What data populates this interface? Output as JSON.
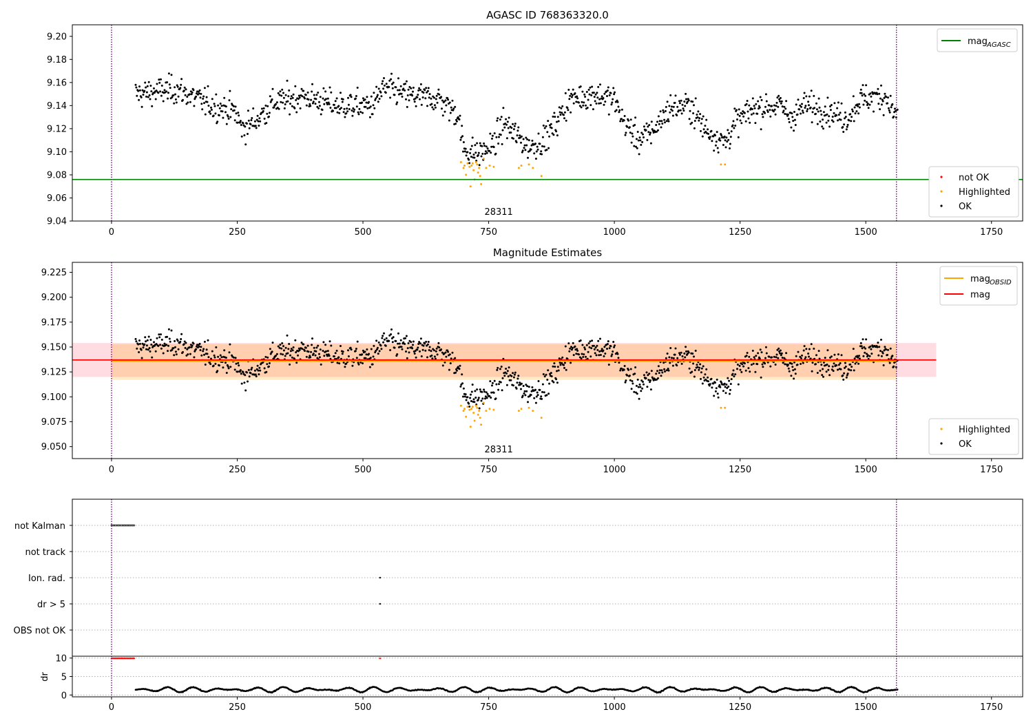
{
  "chart_data": [
    {
      "type": "scatter",
      "title": "AGASC ID 768363320.0",
      "xlim": [
        -78,
        1812
      ],
      "ylim": [
        9.04,
        9.21
      ],
      "xticks": [
        0,
        250,
        500,
        750,
        1000,
        1250,
        1500,
        1750
      ],
      "yticks": [
        9.04,
        9.06,
        9.08,
        9.1,
        9.12,
        9.14,
        9.16,
        9.18,
        9.2
      ],
      "vlines": [
        0,
        1561
      ],
      "annotation": {
        "text": "28311",
        "x": 780
      },
      "legend_lines": [
        {
          "name": "mag",
          "sub": "AGASC",
          "color": "#008000"
        }
      ],
      "legend_points": [
        {
          "name": "not OK",
          "color": "#ff0000"
        },
        {
          "name": "Highlighted",
          "color": "#ffa500"
        },
        {
          "name": "OK",
          "color": "#000000"
        }
      ],
      "hline": {
        "y": 9.076,
        "color": "#008000"
      },
      "series": [
        {
          "name": "OK",
          "color": "#000000"
        },
        {
          "name": "Highlighted",
          "color": "#ffa500"
        }
      ]
    },
    {
      "type": "scatter",
      "title": "Magnitude Estimates",
      "xlim": [
        -78,
        1812
      ],
      "ylim": [
        9.038,
        9.235
      ],
      "xticks": [
        0,
        250,
        500,
        750,
        1000,
        1250,
        1500,
        1750
      ],
      "yticks": [
        9.05,
        9.075,
        9.1,
        9.125,
        9.15,
        9.175,
        9.2,
        9.225
      ],
      "vlines": [
        0,
        1561
      ],
      "annotation": {
        "text": "28311",
        "x": 780
      },
      "legend_lines": [
        {
          "name": "mag",
          "sub": "OBSID",
          "color": "#ffa500"
        },
        {
          "name": "mag",
          "sub": "",
          "color": "#ff0000"
        }
      ],
      "legend_points": [
        {
          "name": "Highlighted",
          "color": "#ffa500"
        },
        {
          "name": "OK",
          "color": "#000000"
        }
      ],
      "mag_obsid": {
        "y": 9.136,
        "band": [
          9.117,
          9.153
        ],
        "x": [
          0,
          1561
        ]
      },
      "mag": {
        "y": 9.137,
        "band": [
          9.12,
          9.154
        ],
        "x": [
          -78,
          1640
        ]
      },
      "series": [
        {
          "name": "OK",
          "color": "#000000"
        },
        {
          "name": "Highlighted",
          "color": "#ffa500"
        }
      ]
    },
    {
      "type": "scatter",
      "xlim": [
        -78,
        1812
      ],
      "xticks": [
        0,
        250,
        500,
        750,
        1000,
        1250,
        1500,
        1750
      ],
      "vlines": [
        0,
        1561
      ],
      "flags": [
        "not Kalman",
        "not track",
        "Ion. rad.",
        "dr > 5",
        "OBS not OK"
      ],
      "flag_points": [
        {
          "flag": "not Kalman",
          "x_range": [
            0,
            45
          ]
        },
        {
          "flag": "Ion. rad.",
          "x": [
            534
          ]
        },
        {
          "flag": "dr > 5",
          "x": [
            534
          ]
        }
      ],
      "dr_ylabel": "dr",
      "dr_yticks": [
        0,
        5,
        10
      ],
      "dr_ylim": [
        -0.5,
        10.5
      ],
      "dr_clipped": {
        "x_range": [
          0,
          45
        ],
        "extra_x": [
          534
        ],
        "value": 10,
        "color": "#ff0000"
      },
      "dr_range": [
        0.5,
        2.6
      ]
    }
  ]
}
